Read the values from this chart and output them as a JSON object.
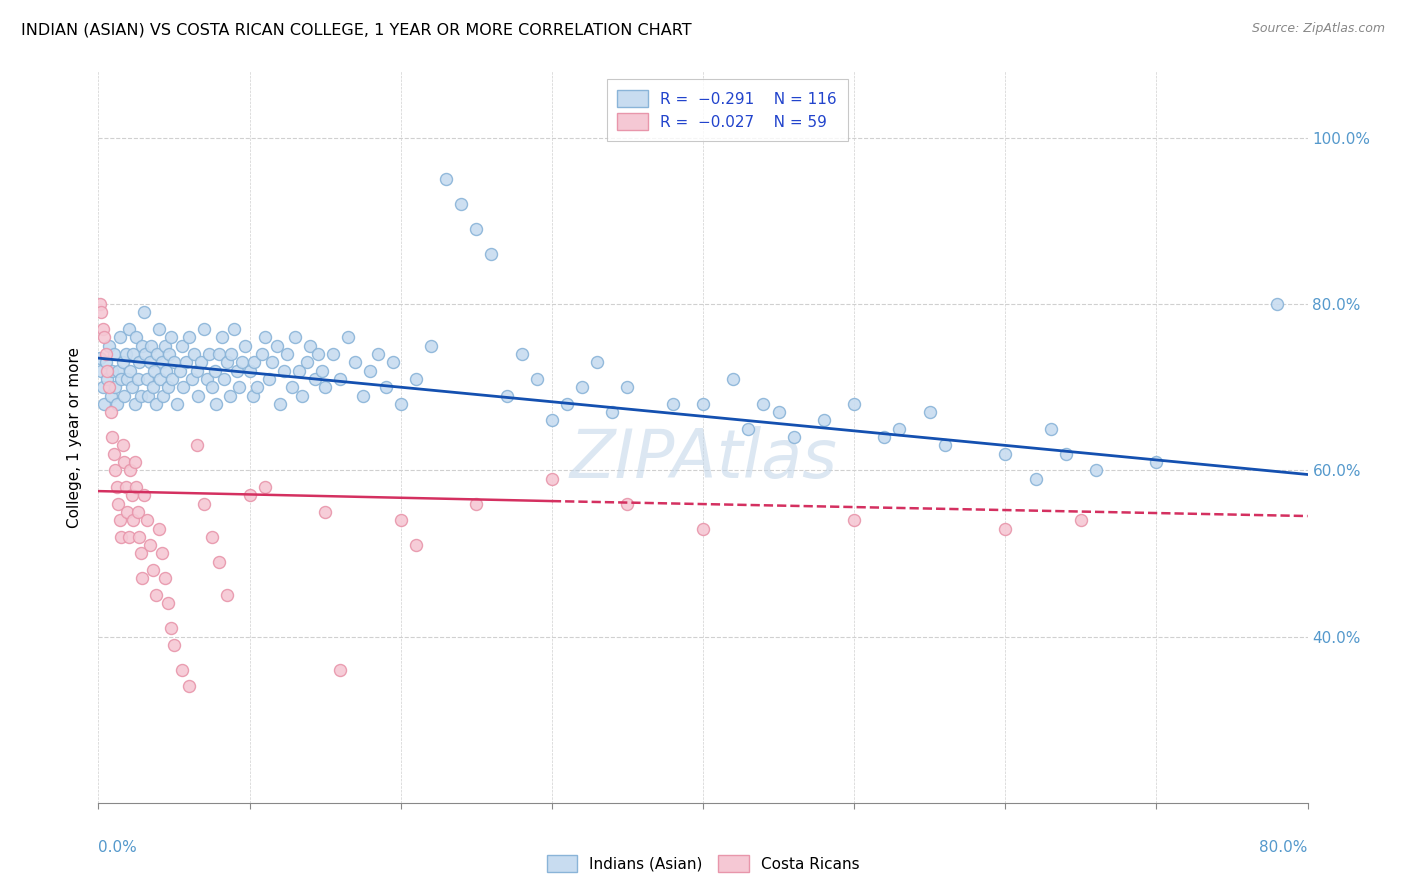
{
  "title": "INDIAN (ASIAN) VS COSTA RICAN COLLEGE, 1 YEAR OR MORE CORRELATION CHART",
  "source": "Source: ZipAtlas.com",
  "ylabel": "College, 1 year or more",
  "xlim": [
    0.0,
    0.8
  ],
  "ylim": [
    0.2,
    1.08
  ],
  "blue_line": {
    "x0": 0.0,
    "y0": 0.735,
    "x1": 0.8,
    "y1": 0.595
  },
  "pink_line_solid": {
    "x0": 0.0,
    "y0": 0.575,
    "x1": 0.3,
    "y1": 0.563
  },
  "pink_line_dashed": {
    "x0": 0.3,
    "y0": 0.563,
    "x1": 0.8,
    "y1": 0.545
  },
  "watermark": "ZIPAtlas",
  "blue_dots": [
    [
      0.001,
      0.735
    ],
    [
      0.002,
      0.72
    ],
    [
      0.003,
      0.7
    ],
    [
      0.004,
      0.68
    ],
    [
      0.005,
      0.73
    ],
    [
      0.006,
      0.71
    ],
    [
      0.007,
      0.75
    ],
    [
      0.008,
      0.69
    ],
    [
      0.009,
      0.72
    ],
    [
      0.01,
      0.74
    ],
    [
      0.011,
      0.7
    ],
    [
      0.012,
      0.68
    ],
    [
      0.013,
      0.72
    ],
    [
      0.014,
      0.76
    ],
    [
      0.015,
      0.71
    ],
    [
      0.016,
      0.73
    ],
    [
      0.017,
      0.69
    ],
    [
      0.018,
      0.74
    ],
    [
      0.019,
      0.71
    ],
    [
      0.02,
      0.77
    ],
    [
      0.021,
      0.72
    ],
    [
      0.022,
      0.7
    ],
    [
      0.023,
      0.74
    ],
    [
      0.024,
      0.68
    ],
    [
      0.025,
      0.76
    ],
    [
      0.026,
      0.71
    ],
    [
      0.027,
      0.73
    ],
    [
      0.028,
      0.69
    ],
    [
      0.029,
      0.75
    ],
    [
      0.03,
      0.79
    ],
    [
      0.031,
      0.74
    ],
    [
      0.032,
      0.71
    ],
    [
      0.033,
      0.69
    ],
    [
      0.034,
      0.73
    ],
    [
      0.035,
      0.75
    ],
    [
      0.036,
      0.7
    ],
    [
      0.037,
      0.72
    ],
    [
      0.038,
      0.68
    ],
    [
      0.039,
      0.74
    ],
    [
      0.04,
      0.77
    ],
    [
      0.041,
      0.71
    ],
    [
      0.042,
      0.73
    ],
    [
      0.043,
      0.69
    ],
    [
      0.044,
      0.75
    ],
    [
      0.045,
      0.72
    ],
    [
      0.046,
      0.7
    ],
    [
      0.047,
      0.74
    ],
    [
      0.048,
      0.76
    ],
    [
      0.049,
      0.71
    ],
    [
      0.05,
      0.73
    ],
    [
      0.052,
      0.68
    ],
    [
      0.054,
      0.72
    ],
    [
      0.055,
      0.75
    ],
    [
      0.056,
      0.7
    ],
    [
      0.058,
      0.73
    ],
    [
      0.06,
      0.76
    ],
    [
      0.062,
      0.71
    ],
    [
      0.063,
      0.74
    ],
    [
      0.065,
      0.72
    ],
    [
      0.066,
      0.69
    ],
    [
      0.068,
      0.73
    ],
    [
      0.07,
      0.77
    ],
    [
      0.072,
      0.71
    ],
    [
      0.073,
      0.74
    ],
    [
      0.075,
      0.7
    ],
    [
      0.077,
      0.72
    ],
    [
      0.078,
      0.68
    ],
    [
      0.08,
      0.74
    ],
    [
      0.082,
      0.76
    ],
    [
      0.083,
      0.71
    ],
    [
      0.085,
      0.73
    ],
    [
      0.087,
      0.69
    ],
    [
      0.088,
      0.74
    ],
    [
      0.09,
      0.77
    ],
    [
      0.092,
      0.72
    ],
    [
      0.093,
      0.7
    ],
    [
      0.095,
      0.73
    ],
    [
      0.097,
      0.75
    ],
    [
      0.1,
      0.72
    ],
    [
      0.102,
      0.69
    ],
    [
      0.103,
      0.73
    ],
    [
      0.105,
      0.7
    ],
    [
      0.108,
      0.74
    ],
    [
      0.11,
      0.76
    ],
    [
      0.113,
      0.71
    ],
    [
      0.115,
      0.73
    ],
    [
      0.118,
      0.75
    ],
    [
      0.12,
      0.68
    ],
    [
      0.123,
      0.72
    ],
    [
      0.125,
      0.74
    ],
    [
      0.128,
      0.7
    ],
    [
      0.13,
      0.76
    ],
    [
      0.133,
      0.72
    ],
    [
      0.135,
      0.69
    ],
    [
      0.138,
      0.73
    ],
    [
      0.14,
      0.75
    ],
    [
      0.143,
      0.71
    ],
    [
      0.145,
      0.74
    ],
    [
      0.148,
      0.72
    ],
    [
      0.15,
      0.7
    ],
    [
      0.155,
      0.74
    ],
    [
      0.16,
      0.71
    ],
    [
      0.165,
      0.76
    ],
    [
      0.17,
      0.73
    ],
    [
      0.175,
      0.69
    ],
    [
      0.18,
      0.72
    ],
    [
      0.185,
      0.74
    ],
    [
      0.19,
      0.7
    ],
    [
      0.195,
      0.73
    ],
    [
      0.2,
      0.68
    ],
    [
      0.21,
      0.71
    ],
    [
      0.22,
      0.75
    ],
    [
      0.23,
      0.95
    ],
    [
      0.24,
      0.92
    ],
    [
      0.25,
      0.89
    ],
    [
      0.26,
      0.86
    ],
    [
      0.27,
      0.69
    ],
    [
      0.28,
      0.74
    ],
    [
      0.29,
      0.71
    ],
    [
      0.3,
      0.66
    ],
    [
      0.31,
      0.68
    ],
    [
      0.32,
      0.7
    ],
    [
      0.33,
      0.73
    ],
    [
      0.34,
      0.67
    ],
    [
      0.35,
      0.7
    ],
    [
      0.38,
      0.68
    ],
    [
      0.4,
      0.68
    ],
    [
      0.42,
      0.71
    ],
    [
      0.43,
      0.65
    ],
    [
      0.44,
      0.68
    ],
    [
      0.45,
      0.67
    ],
    [
      0.46,
      0.64
    ],
    [
      0.48,
      0.66
    ],
    [
      0.5,
      0.68
    ],
    [
      0.52,
      0.64
    ],
    [
      0.53,
      0.65
    ],
    [
      0.55,
      0.67
    ],
    [
      0.56,
      0.63
    ],
    [
      0.6,
      0.62
    ],
    [
      0.62,
      0.59
    ],
    [
      0.63,
      0.65
    ],
    [
      0.64,
      0.62
    ],
    [
      0.66,
      0.6
    ],
    [
      0.7,
      0.61
    ],
    [
      0.78,
      0.8
    ]
  ],
  "pink_dots": [
    [
      0.001,
      0.8
    ],
    [
      0.002,
      0.79
    ],
    [
      0.003,
      0.77
    ],
    [
      0.004,
      0.76
    ],
    [
      0.005,
      0.74
    ],
    [
      0.006,
      0.72
    ],
    [
      0.007,
      0.7
    ],
    [
      0.008,
      0.67
    ],
    [
      0.009,
      0.64
    ],
    [
      0.01,
      0.62
    ],
    [
      0.011,
      0.6
    ],
    [
      0.012,
      0.58
    ],
    [
      0.013,
      0.56
    ],
    [
      0.014,
      0.54
    ],
    [
      0.015,
      0.52
    ],
    [
      0.016,
      0.63
    ],
    [
      0.017,
      0.61
    ],
    [
      0.018,
      0.58
    ],
    [
      0.019,
      0.55
    ],
    [
      0.02,
      0.52
    ],
    [
      0.021,
      0.6
    ],
    [
      0.022,
      0.57
    ],
    [
      0.023,
      0.54
    ],
    [
      0.024,
      0.61
    ],
    [
      0.025,
      0.58
    ],
    [
      0.026,
      0.55
    ],
    [
      0.027,
      0.52
    ],
    [
      0.028,
      0.5
    ],
    [
      0.029,
      0.47
    ],
    [
      0.03,
      0.57
    ],
    [
      0.032,
      0.54
    ],
    [
      0.034,
      0.51
    ],
    [
      0.036,
      0.48
    ],
    [
      0.038,
      0.45
    ],
    [
      0.04,
      0.53
    ],
    [
      0.042,
      0.5
    ],
    [
      0.044,
      0.47
    ],
    [
      0.046,
      0.44
    ],
    [
      0.048,
      0.41
    ],
    [
      0.05,
      0.39
    ],
    [
      0.055,
      0.36
    ],
    [
      0.06,
      0.34
    ],
    [
      0.065,
      0.63
    ],
    [
      0.07,
      0.56
    ],
    [
      0.075,
      0.52
    ],
    [
      0.08,
      0.49
    ],
    [
      0.085,
      0.45
    ],
    [
      0.1,
      0.57
    ],
    [
      0.11,
      0.58
    ],
    [
      0.15,
      0.55
    ],
    [
      0.16,
      0.36
    ],
    [
      0.2,
      0.54
    ],
    [
      0.21,
      0.51
    ],
    [
      0.25,
      0.56
    ],
    [
      0.3,
      0.59
    ],
    [
      0.35,
      0.56
    ],
    [
      0.4,
      0.53
    ],
    [
      0.5,
      0.54
    ],
    [
      0.6,
      0.53
    ],
    [
      0.65,
      0.54
    ]
  ],
  "dot_size": 75,
  "blue_color": "#8ab4d8",
  "blue_fill": "#c8dcf0",
  "pink_color": "#e896ab",
  "pink_fill": "#f5c8d4",
  "line_blue": "#1450b0",
  "line_pink": "#d43060",
  "grid_color": "#d0d0d0",
  "right_axis_color": "#5599cc",
  "background": "#ffffff"
}
